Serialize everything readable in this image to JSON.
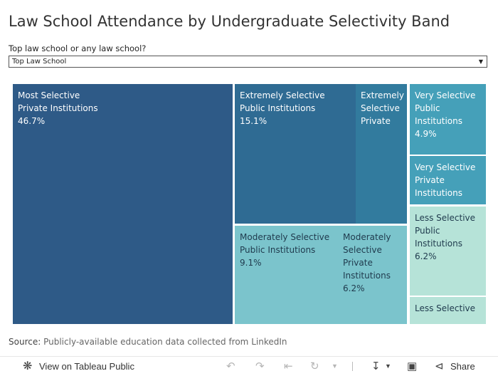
{
  "title": "Law School Attendance by Undergraduate Selectivity Band",
  "filter": {
    "label": "Top law school or any law school?",
    "selected": "Top Law School"
  },
  "chart_data": {
    "type": "treemap",
    "cells": [
      {
        "label": "Most Selective\nPrivate Institutions",
        "value_label": "46.7%",
        "value": 46.7,
        "color": "#2e5a87"
      },
      {
        "label": "Extremely Selective\nPublic Institutions",
        "value_label": "15.1%",
        "value": 15.1,
        "color": "#2f6b93"
      },
      {
        "label": "Extremely\nSelective\nPrivate",
        "value_label": "",
        "value": null,
        "color": "#327b9e"
      },
      {
        "label": "Moderately Selective\nPublic Institutions",
        "value_label": "9.1%",
        "value": 9.1,
        "color": "#7bc4cc"
      },
      {
        "label": "Moderately\nSelective\nPrivate\nInstitutions",
        "value_label": "6.2%",
        "value": 6.2,
        "color": "#7bc4cc"
      },
      {
        "label": "Very Selective\nPublic\nInstitutions",
        "value_label": "4.9%",
        "value": 4.9,
        "color": "#45a0b9"
      },
      {
        "label": "Very Selective\nPrivate\nInstitutions",
        "value_label": "",
        "value": null,
        "color": "#45a0b9"
      },
      {
        "label": "Less Selective\nPublic\nInstitutions",
        "value_label": "6.2%",
        "value": 6.2,
        "color": "#b6e3d8"
      },
      {
        "label": "Less Selective",
        "value_label": "",
        "value": null,
        "color": "#b6e3d8"
      }
    ]
  },
  "source": {
    "key": "Source:",
    "text": "Publicly-available education data collected from LinkedIn"
  },
  "toolbar": {
    "view_label": "View on Tableau Public",
    "share_label": "Share"
  }
}
